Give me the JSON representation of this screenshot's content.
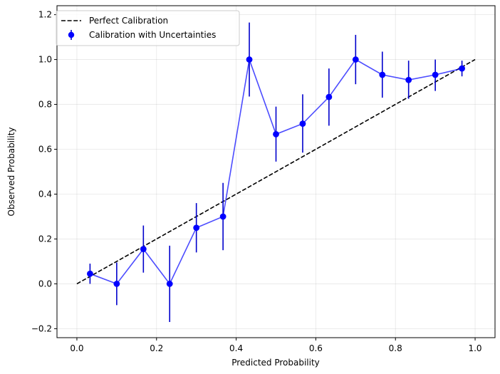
{
  "chart_data": {
    "type": "scatter",
    "xlabel": "Predicted Probability",
    "ylabel": "Observed Probability",
    "xlim": [
      -0.05,
      1.05
    ],
    "ylim": [
      -0.24,
      1.24
    ],
    "xticks": [
      0.0,
      0.2,
      0.4,
      0.6,
      0.8,
      1.0
    ],
    "xtick_labels": [
      "0.0",
      "0.2",
      "0.4",
      "0.6",
      "0.8",
      "1.0"
    ],
    "yticks": [
      -0.2,
      0.0,
      0.2,
      0.4,
      0.6,
      0.8,
      1.0,
      1.2
    ],
    "ytick_labels": [
      "−0.2",
      "0.0",
      "0.2",
      "0.4",
      "0.6",
      "0.8",
      "1.0",
      "1.2"
    ],
    "grid": true,
    "legend_position": "top-left",
    "series": [
      {
        "name": "Perfect Calibration",
        "kind": "dashed-line",
        "color": "#000000",
        "x": [
          0.0,
          1.0
        ],
        "y": [
          0.0,
          1.0
        ]
      },
      {
        "name": "Calibration with Uncertainties",
        "kind": "errorbar",
        "color": "#0000ff",
        "x": [
          0.033,
          0.1,
          0.167,
          0.233,
          0.3,
          0.367,
          0.433,
          0.5,
          0.567,
          0.633,
          0.7,
          0.767,
          0.833,
          0.9,
          0.967
        ],
        "y": [
          0.045,
          0.0,
          0.155,
          0.0,
          0.25,
          0.3,
          1.0,
          0.667,
          0.714,
          0.833,
          1.0,
          0.932,
          0.909,
          0.932,
          0.96
        ],
        "err_low": [
          0.0,
          -0.095,
          0.05,
          -0.17,
          0.14,
          0.15,
          0.835,
          0.545,
          0.585,
          0.705,
          0.89,
          0.83,
          0.825,
          0.86,
          0.925
        ],
        "err_high": [
          0.09,
          0.095,
          0.26,
          0.17,
          0.36,
          0.45,
          1.165,
          0.79,
          0.845,
          0.96,
          1.11,
          1.035,
          0.995,
          1.0,
          0.995
        ]
      }
    ]
  }
}
